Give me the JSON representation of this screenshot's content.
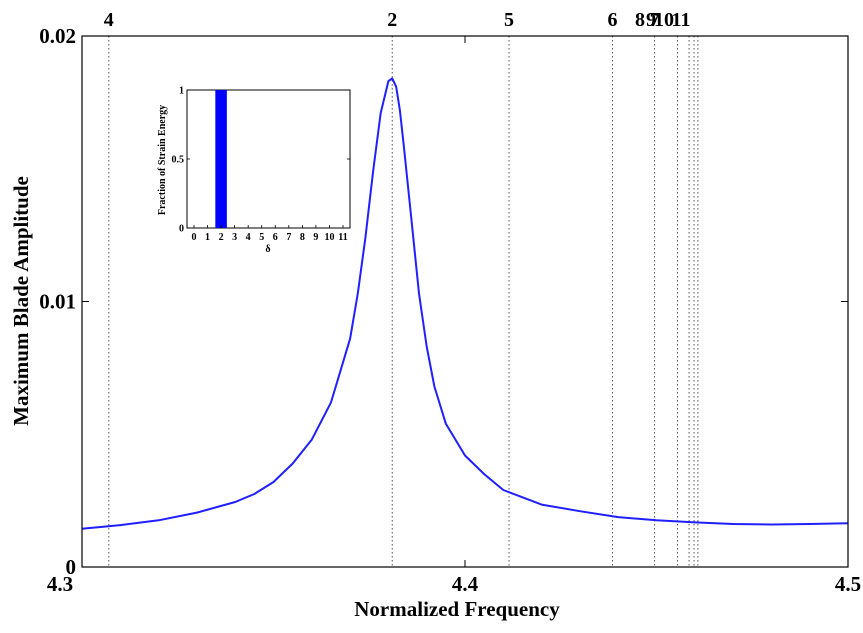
{
  "chart_data": [
    {
      "type": "line",
      "xlabel": "Normalized Frequency",
      "ylabel": "Maximum Blade Amplitude",
      "xlim": [
        4.3,
        4.5
      ],
      "ylim": [
        0,
        0.02
      ],
      "x_ticks": [
        "4.3",
        "4.4",
        "4.5"
      ],
      "y_ticks": [
        "0",
        "0.01",
        "0.02"
      ],
      "grid": false,
      "series": [
        {
          "color": "#1f1fff",
          "x": [
            4.3,
            4.31,
            4.32,
            4.33,
            4.34,
            4.345,
            4.35,
            4.355,
            4.36,
            4.365,
            4.37,
            4.372,
            4.374,
            4.376,
            4.378,
            4.38,
            4.381,
            4.382,
            4.383,
            4.384,
            4.386,
            4.388,
            4.39,
            4.392,
            4.395,
            4.4,
            4.405,
            4.41,
            4.42,
            4.43,
            4.44,
            4.45,
            4.46,
            4.47,
            4.48,
            4.49,
            4.5
          ],
          "y": [
            0.00144,
            0.00158,
            0.00176,
            0.00205,
            0.00245,
            0.00275,
            0.0032,
            0.0039,
            0.0048,
            0.0062,
            0.0086,
            0.0103,
            0.0124,
            0.0149,
            0.0171,
            0.0183,
            0.0184,
            0.0181,
            0.0172,
            0.0159,
            0.0131,
            0.0103,
            0.0083,
            0.0068,
            0.0054,
            0.0042,
            0.0035,
            0.0029,
            0.00235,
            0.0021,
            0.00188,
            0.00176,
            0.00168,
            0.00162,
            0.0016,
            0.00162,
            0.00165
          ]
        }
      ],
      "mode_lines": [
        {
          "label": "4",
          "x": 4.307
        },
        {
          "label": "2",
          "x": 4.381
        },
        {
          "label": "5",
          "x": 4.4115
        },
        {
          "label": "6",
          "x": 4.4385
        },
        {
          "label": "7",
          "x": 4.4495
        },
        {
          "label": "8",
          "x": 4.4555
        },
        {
          "label": "9",
          "x": 4.4585
        },
        {
          "label": "10",
          "x": 4.4598
        },
        {
          "label": "11",
          "x": 4.4608
        }
      ]
    },
    {
      "type": "bar",
      "role": "inset",
      "xlabel": "δ",
      "ylabel": "Fraction of Strain Energy",
      "categories": [
        "0",
        "1",
        "2",
        "3",
        "4",
        "5",
        "6",
        "7",
        "8",
        "9",
        "10",
        "11"
      ],
      "values": [
        0,
        0,
        1,
        0,
        0,
        0,
        0,
        0,
        0,
        0,
        0,
        0
      ],
      "ylim": [
        0,
        1
      ],
      "y_ticks": [
        "0",
        "0.5",
        "1"
      ],
      "color": "#0000ff"
    }
  ]
}
